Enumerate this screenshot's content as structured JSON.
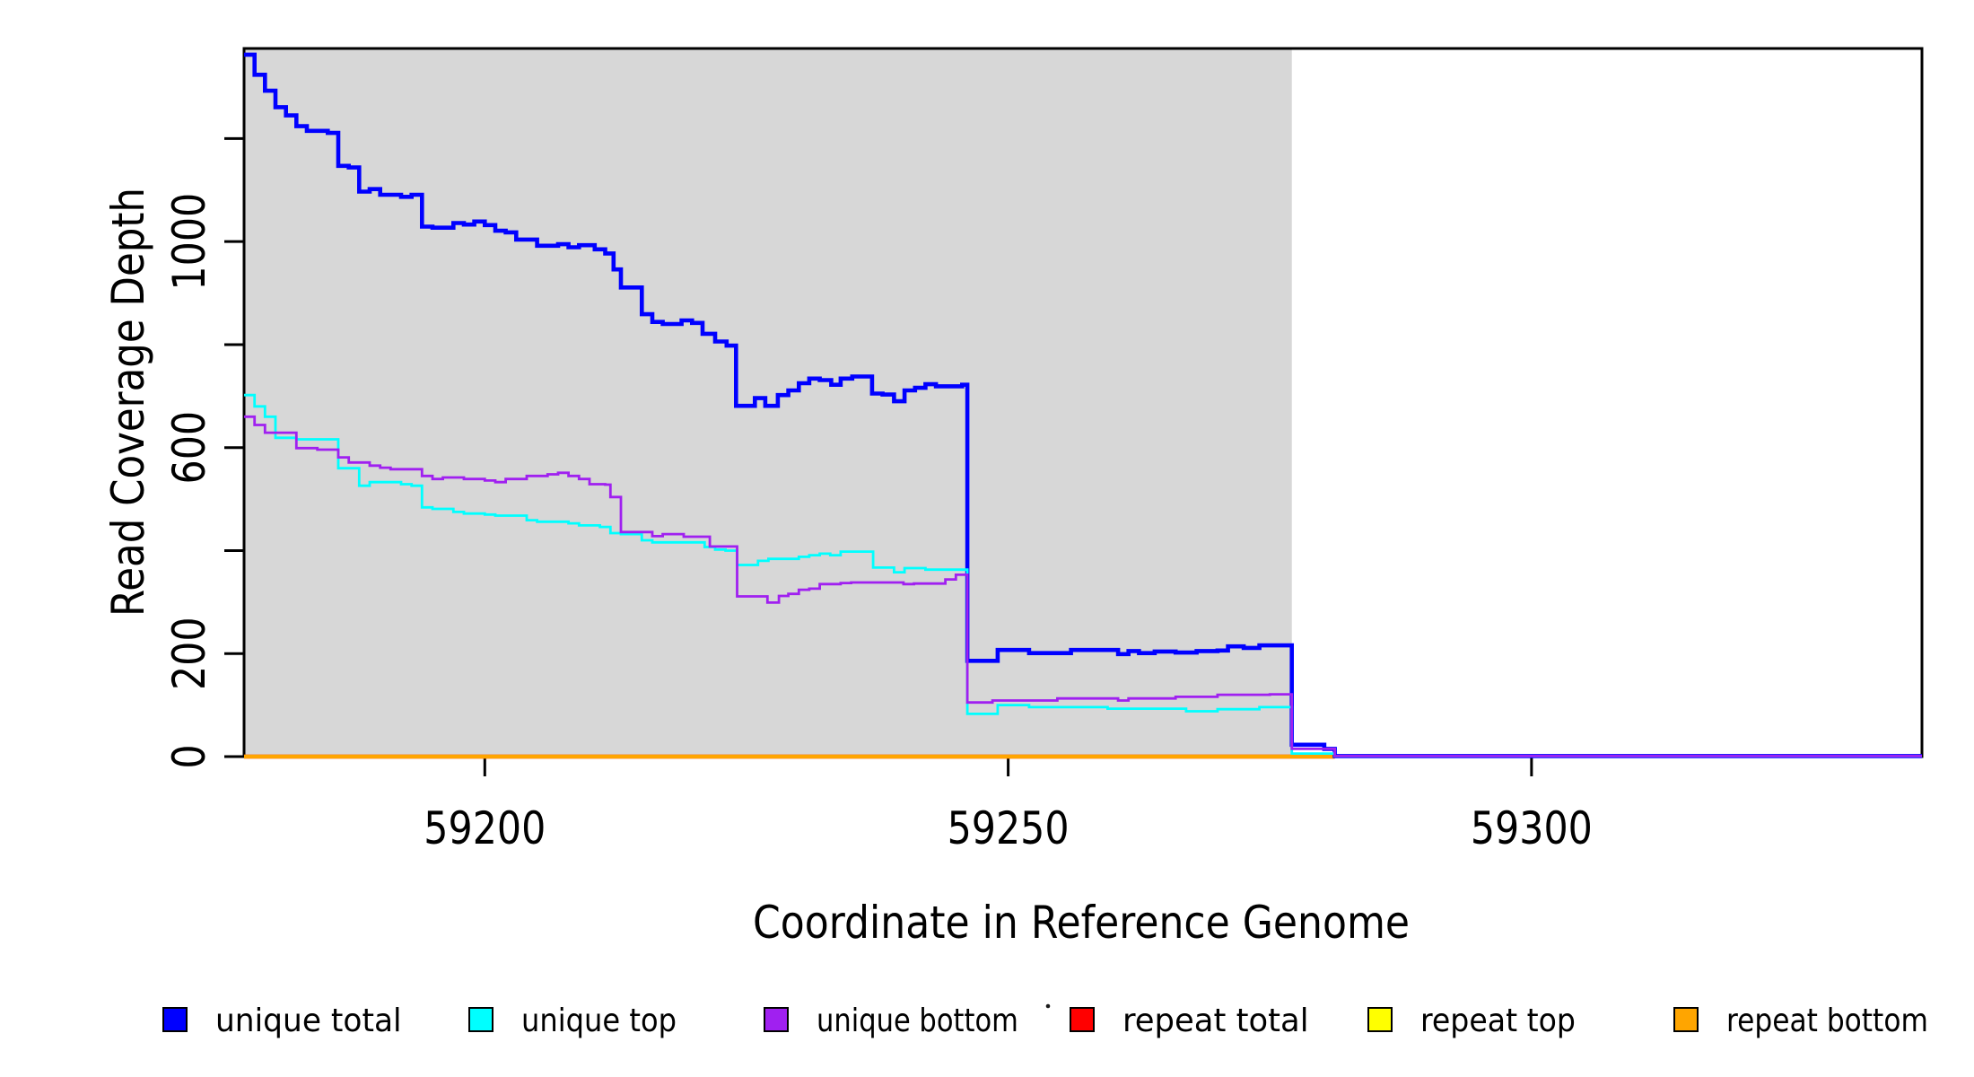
{
  "chart_data": {
    "type": "line",
    "subtype": "step",
    "title": "",
    "xlabel": "Coordinate in Reference Genome",
    "ylabel": "Read Coverage Depth",
    "xlim": [
      59177,
      59337.3
    ],
    "ylim": [
      0,
      1375
    ],
    "grid": false,
    "background": "#ffffff",
    "shaded_region": {
      "x0": 59177,
      "x1": 59277.1,
      "color": "#d7d7d7"
    },
    "x_ticks": [
      {
        "value": 59200,
        "label": "59200"
      },
      {
        "value": 59250,
        "label": "59250"
      },
      {
        "value": 59300,
        "label": "59300"
      }
    ],
    "y_ticks": [
      {
        "value": 0,
        "label": "0"
      },
      {
        "value": 200,
        "label": "200"
      },
      {
        "value": 400,
        "label": ""
      },
      {
        "value": 600,
        "label": "600"
      },
      {
        "value": 800,
        "label": ""
      },
      {
        "value": 1000,
        "label": "1000"
      },
      {
        "value": 1200,
        "label": ""
      }
    ],
    "series": [
      {
        "name": "repeat total",
        "color": "#ff0000",
        "line_width": 4.6,
        "zorder": 1,
        "points": [
          [
            59177,
            0
          ],
          [
            59281.2,
            0
          ]
        ]
      },
      {
        "name": "repeat top",
        "color": "#ffff00",
        "line_width": 2.8,
        "zorder": 2,
        "points": [
          [
            59177,
            0
          ],
          [
            59281.2,
            0
          ]
        ]
      },
      {
        "name": "repeat bottom",
        "color": "#ffa500",
        "line_width": 4.6,
        "zorder": 3,
        "points": [
          [
            59177,
            0
          ],
          [
            59281.2,
            0
          ]
        ]
      },
      {
        "name": "unique total",
        "color": "#0000ff",
        "line_width": 4.6,
        "zorder": 4,
        "points": [
          [
            59177,
            1363
          ],
          [
            59178,
            1324
          ],
          [
            59179,
            1293
          ],
          [
            59180,
            1261
          ],
          [
            59181,
            1245
          ],
          [
            59182,
            1224
          ],
          [
            59183,
            1215
          ],
          [
            59185,
            1211
          ],
          [
            59186,
            1147
          ],
          [
            59187,
            1144
          ],
          [
            59188,
            1097
          ],
          [
            59189,
            1102
          ],
          [
            59190,
            1091
          ],
          [
            59192,
            1087
          ],
          [
            59193,
            1091
          ],
          [
            59194,
            1029
          ],
          [
            59195,
            1027
          ],
          [
            59197,
            1036
          ],
          [
            59198,
            1033
          ],
          [
            59199,
            1039
          ],
          [
            59200,
            1032
          ],
          [
            59201,
            1021
          ],
          [
            59202,
            1018
          ],
          [
            59203,
            1004
          ],
          [
            59205,
            992
          ],
          [
            59207,
            995
          ],
          [
            59208,
            989
          ],
          [
            59209,
            993
          ],
          [
            59210.5,
            985
          ],
          [
            59211.5,
            977
          ],
          [
            59212.3,
            946
          ],
          [
            59213,
            911
          ],
          [
            59215,
            859
          ],
          [
            59216,
            844
          ],
          [
            59217,
            840
          ],
          [
            59218.8,
            847
          ],
          [
            59219.8,
            842
          ],
          [
            59220.8,
            821
          ],
          [
            59222,
            806
          ],
          [
            59223.1,
            798
          ],
          [
            59224,
            681
          ],
          [
            59225.8,
            696
          ],
          [
            59226.8,
            681
          ],
          [
            59228,
            702
          ],
          [
            59229,
            711
          ],
          [
            59230,
            725
          ],
          [
            59231,
            734
          ],
          [
            59232,
            731
          ],
          [
            59233.1,
            722
          ],
          [
            59234,
            734
          ],
          [
            59235.1,
            738
          ],
          [
            59237,
            705
          ],
          [
            59238,
            703
          ],
          [
            59239.1,
            690
          ],
          [
            59240.1,
            711
          ],
          [
            59241.1,
            716
          ],
          [
            59242.1,
            723
          ],
          [
            59243.1,
            719
          ],
          [
            59245.6,
            722
          ],
          [
            59246.1,
            186
          ],
          [
            59249,
            207
          ],
          [
            59252,
            201
          ],
          [
            59256,
            207
          ],
          [
            59260.5,
            199
          ],
          [
            59261.5,
            205
          ],
          [
            59262.5,
            201
          ],
          [
            59264,
            204
          ],
          [
            59266,
            202
          ],
          [
            59268,
            205
          ],
          [
            59270,
            206
          ],
          [
            59271,
            214
          ],
          [
            59272.5,
            211
          ],
          [
            59274,
            216
          ],
          [
            59277.1,
            23
          ],
          [
            59280.2,
            15
          ],
          [
            59281.2,
            1
          ],
          [
            59337.3,
            1
          ]
        ]
      },
      {
        "name": "unique top",
        "color": "#00ffff",
        "line_width": 2.8,
        "zorder": 5,
        "points": [
          [
            59177,
            702
          ],
          [
            59178,
            680
          ],
          [
            59179,
            660
          ],
          [
            59180,
            619
          ],
          [
            59182,
            616
          ],
          [
            59186,
            560
          ],
          [
            59188,
            526
          ],
          [
            59189,
            533
          ],
          [
            59192,
            529
          ],
          [
            59193,
            526
          ],
          [
            59194,
            484
          ],
          [
            59195,
            481
          ],
          [
            59197,
            475
          ],
          [
            59198,
            472
          ],
          [
            59200,
            470
          ],
          [
            59201,
            468
          ],
          [
            59204,
            459
          ],
          [
            59205,
            456
          ],
          [
            59208,
            453
          ],
          [
            59209,
            449
          ],
          [
            59211,
            446
          ],
          [
            59212,
            434
          ],
          [
            59213,
            432
          ],
          [
            59215,
            420
          ],
          [
            59216,
            416
          ],
          [
            59221,
            407
          ],
          [
            59222,
            402
          ],
          [
            59223,
            400
          ],
          [
            59224.1,
            372
          ],
          [
            59226.1,
            380
          ],
          [
            59227.1,
            384
          ],
          [
            59230,
            388
          ],
          [
            59231,
            391
          ],
          [
            59232,
            394
          ],
          [
            59233,
            391
          ],
          [
            59234,
            398
          ],
          [
            59237.1,
            367
          ],
          [
            59239.1,
            358
          ],
          [
            59240.1,
            366
          ],
          [
            59242.1,
            363
          ],
          [
            59246.1,
            83
          ],
          [
            59249,
            100
          ],
          [
            59252,
            96
          ],
          [
            59259.5,
            93
          ],
          [
            59267,
            88
          ],
          [
            59270,
            92
          ],
          [
            59274,
            96
          ],
          [
            59277.1,
            6
          ],
          [
            59281.2,
            1
          ],
          [
            59337.3,
            1
          ]
        ]
      },
      {
        "name": "unique bottom",
        "color": "#a020f0",
        "line_width": 2.8,
        "zorder": 6,
        "points": [
          [
            59177,
            660
          ],
          [
            59178,
            644
          ],
          [
            59179,
            629
          ],
          [
            59182,
            599
          ],
          [
            59184,
            596
          ],
          [
            59186,
            581
          ],
          [
            59187,
            571
          ],
          [
            59189,
            565
          ],
          [
            59190,
            561
          ],
          [
            59191,
            558
          ],
          [
            59194,
            545
          ],
          [
            59195,
            539
          ],
          [
            59196,
            542
          ],
          [
            59198,
            539
          ],
          [
            59200,
            536
          ],
          [
            59201,
            533
          ],
          [
            59202,
            539
          ],
          [
            59204,
            545
          ],
          [
            59206,
            548
          ],
          [
            59207,
            551
          ],
          [
            59208,
            545
          ],
          [
            59209,
            539
          ],
          [
            59210,
            529
          ],
          [
            59211.5,
            528
          ],
          [
            59212,
            504
          ],
          [
            59213,
            436
          ],
          [
            59216,
            428
          ],
          [
            59217,
            432
          ],
          [
            59219,
            427
          ],
          [
            59221.5,
            408
          ],
          [
            59224.1,
            311
          ],
          [
            59227,
            299
          ],
          [
            59228.1,
            312
          ],
          [
            59229,
            316
          ],
          [
            59230,
            324
          ],
          [
            59231,
            326
          ],
          [
            59232,
            335
          ],
          [
            59234,
            337
          ],
          [
            59235,
            338
          ],
          [
            59240,
            335
          ],
          [
            59241,
            336
          ],
          [
            59244,
            344
          ],
          [
            59245,
            353
          ],
          [
            59246.1,
            105
          ],
          [
            59248.5,
            109
          ],
          [
            59254.7,
            113
          ],
          [
            59260.5,
            109
          ],
          [
            59261.5,
            113
          ],
          [
            59266,
            116
          ],
          [
            59270,
            120
          ],
          [
            59275,
            121
          ],
          [
            59277.1,
            15
          ],
          [
            59281.2,
            1
          ],
          [
            59337.3,
            1
          ]
        ]
      }
    ],
    "legend": {
      "position": "bottom",
      "entries": [
        {
          "label": "unique total",
          "color": "#0000ff"
        },
        {
          "label": "unique top",
          "color": "#00ffff"
        },
        {
          "label": "unique bottom",
          "color": "#a020f0"
        },
        {
          "label": "repeat total",
          "color": "#ff0000"
        },
        {
          "label": "repeat top",
          "color": "#ffff00"
        },
        {
          "label": "repeat bottom",
          "color": "#ffa500"
        }
      ]
    }
  }
}
